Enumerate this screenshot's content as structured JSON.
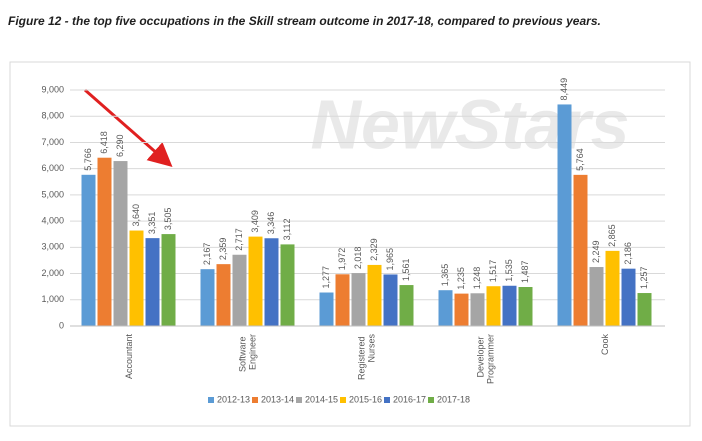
{
  "chart_data": {
    "type": "bar",
    "title": "Figure 12 - the top five occupations in the Skill stream outcome in 2017-18, compared to previous years.",
    "watermark": "NewStars",
    "categories": [
      "Accountant",
      "Software Engineer",
      "Registered Nurses",
      "Developer Programmer",
      "Cook"
    ],
    "series": [
      {
        "name": "2012-13",
        "color": "#5b9bd5",
        "values": [
          5766,
          2167,
          1277,
          1365,
          8449
        ],
        "value_labels": [
          "5,766",
          "2,167",
          "1,277",
          "1,365",
          "8,449"
        ]
      },
      {
        "name": "2013-14",
        "color": "#ed7d31",
        "values": [
          6418,
          2359,
          1972,
          1235,
          5764
        ],
        "value_labels": [
          "6,418",
          "2,359",
          "1,972",
          "1,235",
          "5,764"
        ]
      },
      {
        "name": "2014-15",
        "color": "#a5a5a5",
        "values": [
          6290,
          2717,
          2018,
          1248,
          2249
        ],
        "value_labels": [
          "6,290",
          "2,717",
          "2,018",
          "1,248",
          "2,249"
        ]
      },
      {
        "name": "2015-16",
        "color": "#ffc000",
        "values": [
          3640,
          3409,
          2329,
          1517,
          2865
        ],
        "value_labels": [
          "3,640",
          "3,409",
          "2,329",
          "1,517",
          "2,865"
        ]
      },
      {
        "name": "2016-17",
        "color": "#4472c4",
        "values": [
          3351,
          3346,
          1965,
          1535,
          2186
        ],
        "value_labels": [
          "3,351",
          "3,346",
          "1,965",
          "1,535",
          "2,186"
        ]
      },
      {
        "name": "2017-18",
        "color": "#70ad47",
        "values": [
          3505,
          3112,
          1561,
          1487,
          1257
        ],
        "value_labels": [
          "3,505",
          "3,112",
          "1,561",
          "1,487",
          "1,257"
        ]
      }
    ],
    "ylim": [
      0,
      9000
    ],
    "yticks": [
      0,
      {
        "value": 1000,
        "label": "1,000"
      },
      {
        "value": 2000,
        "label": "2,000"
      },
      {
        "value": 3000,
        "label": "3,000"
      },
      {
        "value": 4000,
        "label": "4,000"
      },
      {
        "value": 5000,
        "label": "5,000"
      },
      {
        "value": 6000,
        "label": "6,000"
      },
      {
        "value": 7000,
        "label": "7,000"
      },
      {
        "value": 8000,
        "label": "8,000"
      },
      {
        "value": 9000,
        "label": "9,000"
      }
    ],
    "grid": true,
    "legend": "bottom"
  }
}
